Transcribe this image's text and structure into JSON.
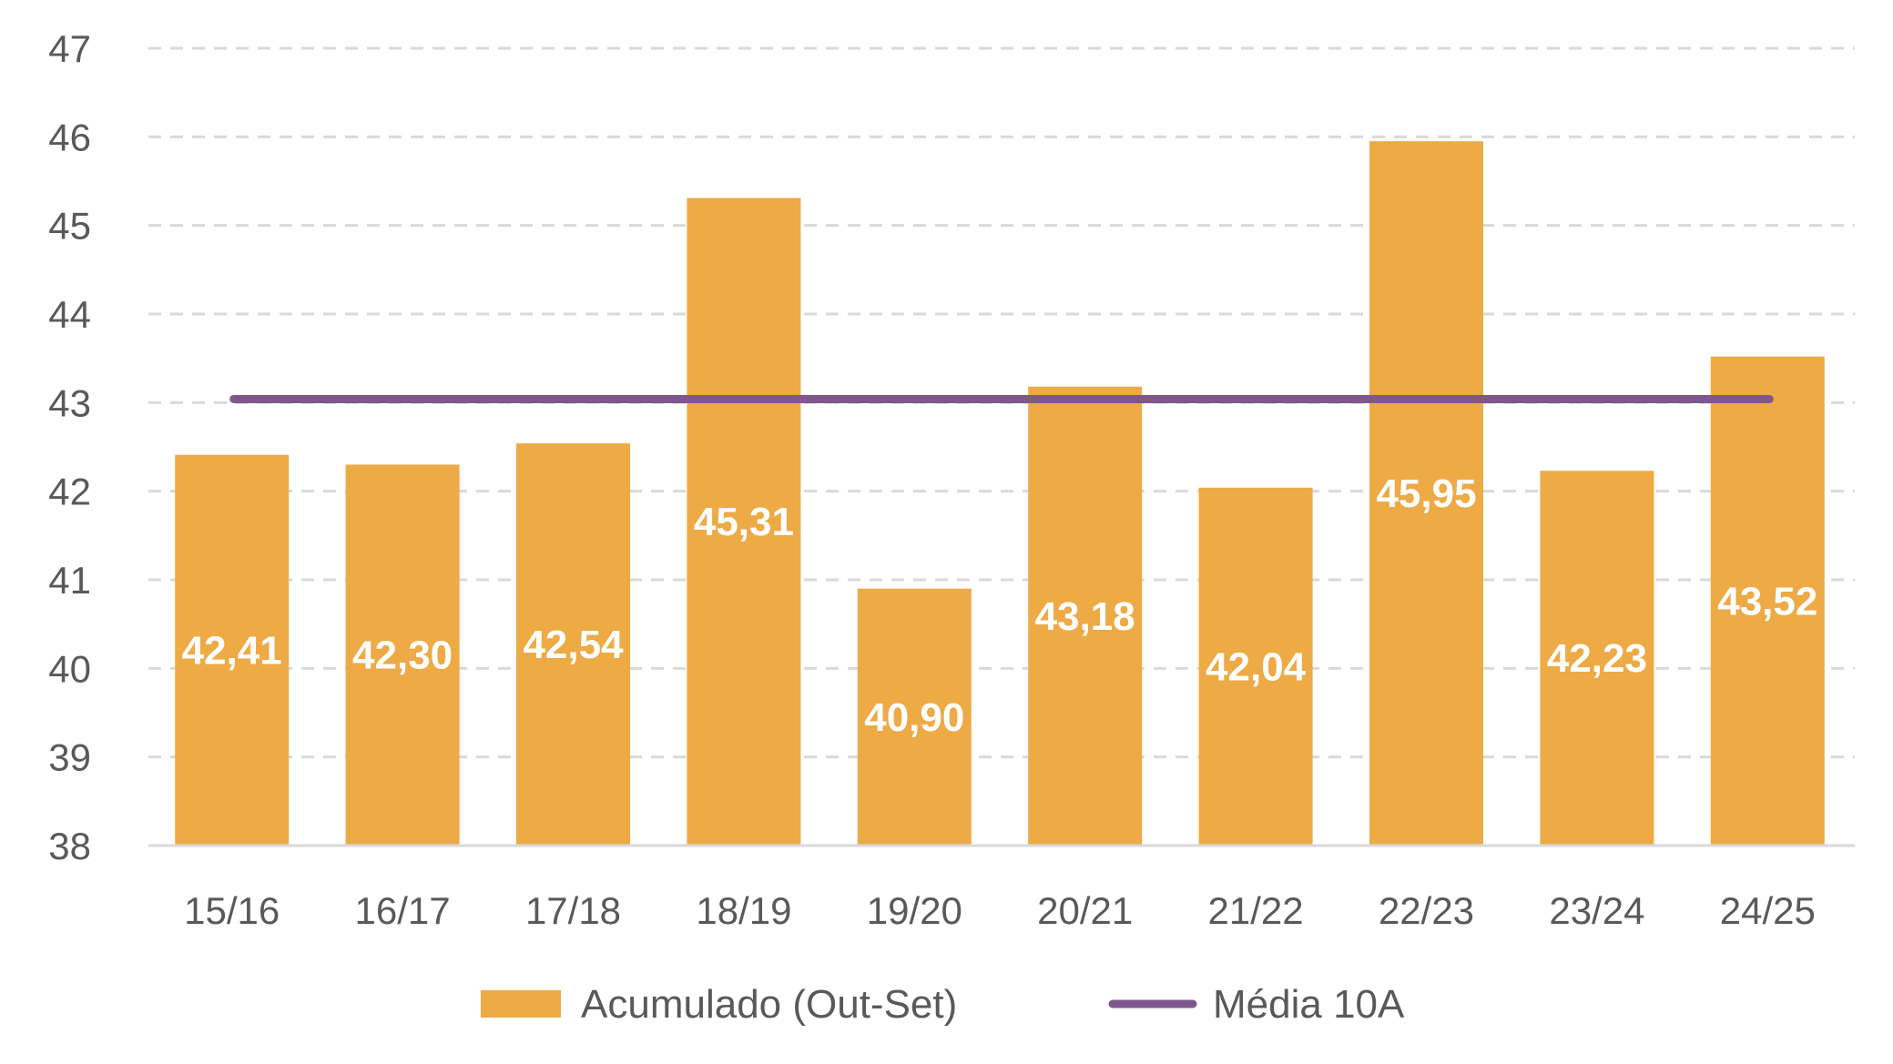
{
  "chart_data": {
    "type": "bar",
    "title": "",
    "xlabel": "",
    "ylabel": "",
    "ylim": [
      38,
      47
    ],
    "yticks": [
      "38",
      "39",
      "40",
      "41",
      "42",
      "43",
      "44",
      "45",
      "46",
      "47"
    ],
    "grid": true,
    "categories": [
      "15/16",
      "16/17",
      "17/18",
      "18/19",
      "19/20",
      "20/21",
      "21/22",
      "22/23",
      "23/24",
      "24/25"
    ],
    "series": [
      {
        "name": "Acumulado (Out-Set)",
        "type": "bar",
        "color": "#EDAA45",
        "values": [
          42.41,
          42.3,
          42.54,
          45.31,
          40.9,
          43.18,
          42.04,
          45.95,
          42.23,
          43.52
        ],
        "labels": [
          "42,41",
          "42,30",
          "42,54",
          "45,31",
          "40,90",
          "43,18",
          "42,04",
          "45,95",
          "42,23",
          "43,52"
        ]
      },
      {
        "name": "Média 10A",
        "type": "line",
        "color": "#7F578C",
        "value": 43.04
      }
    ],
    "legend_position": "bottom"
  }
}
